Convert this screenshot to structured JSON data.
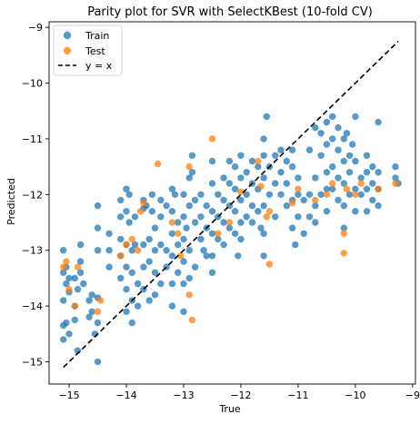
{
  "chart_data": {
    "type": "scatter",
    "title": "Parity plot for SVR with SelectKBest (10-fold CV)",
    "xlabel": "True",
    "ylabel": "Predicted",
    "xlim": [
      -15.35,
      -8.95
    ],
    "ylim": [
      -15.4,
      -8.9
    ],
    "xticks": [
      -15,
      -14,
      -13,
      -12,
      -11,
      -10,
      -9
    ],
    "xtick_labels": [
      "−15",
      "−14",
      "−13",
      "−12",
      "−11",
      "−10",
      "−9"
    ],
    "yticks": [
      -15,
      -14,
      -13,
      -12,
      -11,
      -10,
      -9
    ],
    "ytick_labels": [
      "−15",
      "−14",
      "−13",
      "−12",
      "−11",
      "−10",
      "−9"
    ],
    "grid": false,
    "legend_position": "top-left",
    "legend": [
      "Train",
      "Test",
      "y = x"
    ],
    "colors": {
      "train": "#1f77b4",
      "test": "#ff7f0e",
      "identity": "#000000"
    },
    "series": [
      {
        "name": "Train",
        "points": [
          [
            -15.1,
            -13.0
          ],
          [
            -15.1,
            -13.4
          ],
          [
            -15.1,
            -13.9
          ],
          [
            -15.1,
            -14.35
          ],
          [
            -15.1,
            -14.6
          ],
          [
            -15.05,
            -13.3
          ],
          [
            -15.05,
            -13.6
          ],
          [
            -15.05,
            -14.3
          ],
          [
            -15.0,
            -13.5
          ],
          [
            -15.0,
            -13.75
          ],
          [
            -15.0,
            -14.5
          ],
          [
            -14.9,
            -13.5
          ],
          [
            -14.9,
            -14.0
          ],
          [
            -14.9,
            -14.25
          ],
          [
            -14.85,
            -13.7
          ],
          [
            -14.85,
            -14.8
          ],
          [
            -14.8,
            -12.9
          ],
          [
            -14.8,
            -13.2
          ],
          [
            -14.8,
            -13.4
          ],
          [
            -14.75,
            -13.6
          ],
          [
            -14.65,
            -13.9
          ],
          [
            -14.65,
            -14.2
          ],
          [
            -14.6,
            -13.8
          ],
          [
            -14.6,
            -14.1
          ],
          [
            -14.55,
            -14.5
          ],
          [
            -14.5,
            -12.2
          ],
          [
            -14.5,
            -12.6
          ],
          [
            -14.5,
            -13.0
          ],
          [
            -14.5,
            -13.85
          ],
          [
            -14.5,
            -14.3
          ],
          [
            -14.5,
            -15.0
          ],
          [
            -14.3,
            -12.7
          ],
          [
            -14.3,
            -13.3
          ],
          [
            -14.3,
            -13.0
          ],
          [
            -14.1,
            -12.1
          ],
          [
            -14.1,
            -12.4
          ],
          [
            -14.1,
            -12.8
          ],
          [
            -14.1,
            -13.1
          ],
          [
            -14.1,
            -13.5
          ],
          [
            -14.0,
            -11.9
          ],
          [
            -14.0,
            -12.3
          ],
          [
            -14.0,
            -12.9
          ],
          [
            -14.0,
            -13.3
          ],
          [
            -14.0,
            -13.7
          ],
          [
            -14.0,
            -14.1
          ],
          [
            -13.95,
            -12.0
          ],
          [
            -13.95,
            -12.5
          ],
          [
            -13.9,
            -13.0
          ],
          [
            -13.9,
            -13.4
          ],
          [
            -13.9,
            -13.9
          ],
          [
            -13.9,
            -14.3
          ],
          [
            -13.85,
            -12.4
          ],
          [
            -13.85,
            -12.9
          ],
          [
            -13.8,
            -13.6
          ],
          [
            -13.8,
            -14.0
          ],
          [
            -13.7,
            -12.1
          ],
          [
            -13.7,
            -12.25
          ],
          [
            -13.7,
            -12.9
          ],
          [
            -13.7,
            -13.3
          ],
          [
            -13.7,
            -13.7
          ],
          [
            -13.65,
            -12.2
          ],
          [
            -13.6,
            -12.8
          ],
          [
            -13.6,
            -13.2
          ],
          [
            -13.6,
            -13.9
          ],
          [
            -13.55,
            -12.0
          ],
          [
            -13.55,
            -12.3
          ],
          [
            -13.5,
            -12.6
          ],
          [
            -13.5,
            -13.0
          ],
          [
            -13.5,
            -13.4
          ],
          [
            -13.5,
            -13.8
          ],
          [
            -13.4,
            -12.1
          ],
          [
            -13.4,
            -12.4
          ],
          [
            -13.4,
            -12.9
          ],
          [
            -13.4,
            -13.6
          ],
          [
            -13.3,
            -12.2
          ],
          [
            -13.3,
            -13.0
          ],
          [
            -13.3,
            -13.3
          ],
          [
            -13.2,
            -11.9
          ],
          [
            -13.2,
            -12.3
          ],
          [
            -13.2,
            -12.7
          ],
          [
            -13.2,
            -13.1
          ],
          [
            -13.2,
            -13.6
          ],
          [
            -13.2,
            -14.0
          ],
          [
            -13.15,
            -12.0
          ],
          [
            -13.1,
            -12.5
          ],
          [
            -13.1,
            -12.9
          ],
          [
            -13.1,
            -13.4
          ],
          [
            -13.0,
            -12.0
          ],
          [
            -13.0,
            -12.4
          ],
          [
            -13.0,
            -12.8
          ],
          [
            -13.0,
            -13.2
          ],
          [
            -13.0,
            -13.6
          ],
          [
            -13.0,
            -14.1
          ],
          [
            -12.95,
            -12.6
          ],
          [
            -12.9,
            -11.7
          ],
          [
            -12.9,
            -12.2
          ],
          [
            -12.9,
            -13.0
          ],
          [
            -12.9,
            -13.5
          ],
          [
            -12.85,
            -11.3
          ],
          [
            -12.85,
            -11.6
          ],
          [
            -12.8,
            -12.1
          ],
          [
            -12.8,
            -12.5
          ],
          [
            -12.8,
            -13.3
          ],
          [
            -12.7,
            -12.0
          ],
          [
            -12.7,
            -12.4
          ],
          [
            -12.7,
            -12.8
          ],
          [
            -12.65,
            -13.0
          ],
          [
            -12.6,
            -12.2
          ],
          [
            -12.6,
            -12.6
          ],
          [
            -12.6,
            -13.1
          ],
          [
            -12.5,
            -11.4
          ],
          [
            -12.5,
            -11.8
          ],
          [
            -12.5,
            -12.3
          ],
          [
            -12.5,
            -12.7
          ],
          [
            -12.5,
            -13.1
          ],
          [
            -12.5,
            -13.4
          ],
          [
            -12.4,
            -12.0
          ],
          [
            -12.4,
            -12.4
          ],
          [
            -12.4,
            -12.8
          ],
          [
            -12.3,
            -11.7
          ],
          [
            -12.3,
            -12.1
          ],
          [
            -12.3,
            -12.5
          ],
          [
            -12.3,
            -12.9
          ],
          [
            -12.2,
            -11.4
          ],
          [
            -12.2,
            -11.8
          ],
          [
            -12.2,
            -12.2
          ],
          [
            -12.2,
            -12.6
          ],
          [
            -12.1,
            -11.5
          ],
          [
            -12.1,
            -11.9
          ],
          [
            -12.1,
            -12.3
          ],
          [
            -12.1,
            -12.7
          ],
          [
            -12.05,
            -13.1
          ],
          [
            -12.0,
            -11.3
          ],
          [
            -12.0,
            -11.7
          ],
          [
            -12.0,
            -12.1
          ],
          [
            -12.0,
            -12.5
          ],
          [
            -12.0,
            -12.8
          ],
          [
            -11.9,
            -11.6
          ],
          [
            -11.9,
            -12.0
          ],
          [
            -11.9,
            -12.4
          ],
          [
            -11.8,
            -11.4
          ],
          [
            -11.8,
            -11.8
          ],
          [
            -11.8,
            -12.2
          ],
          [
            -11.8,
            -12.5
          ],
          [
            -11.7,
            -11.5
          ],
          [
            -11.7,
            -11.9
          ],
          [
            -11.7,
            -12.3
          ],
          [
            -11.65,
            -12.6
          ],
          [
            -11.6,
            -11.0
          ],
          [
            -11.6,
            -11.3
          ],
          [
            -11.6,
            -11.7
          ],
          [
            -11.6,
            -12.2
          ],
          [
            -11.6,
            -12.7
          ],
          [
            -11.6,
            -13.1
          ],
          [
            -11.55,
            -10.6
          ],
          [
            -11.5,
            -11.5
          ],
          [
            -11.5,
            -12.0
          ],
          [
            -11.4,
            -11.3
          ],
          [
            -11.4,
            -11.8
          ],
          [
            -11.4,
            -12.4
          ],
          [
            -11.3,
            -11.2
          ],
          [
            -11.3,
            -11.6
          ],
          [
            -11.3,
            -12.0
          ],
          [
            -11.2,
            -11.4
          ],
          [
            -11.2,
            -11.8
          ],
          [
            -11.2,
            -12.2
          ],
          [
            -11.1,
            -11.2
          ],
          [
            -11.1,
            -11.5
          ],
          [
            -11.1,
            -12.1
          ],
          [
            -11.1,
            -12.6
          ],
          [
            -11.05,
            -12.9
          ],
          [
            -11.0,
            -11.7
          ],
          [
            -11.0,
            -12.0
          ],
          [
            -11.0,
            -12.4
          ],
          [
            -10.9,
            -12.1
          ],
          [
            -10.9,
            -12.7
          ],
          [
            -10.8,
            -11.2
          ],
          [
            -10.8,
            -12.0
          ],
          [
            -10.8,
            -12.4
          ],
          [
            -10.7,
            -10.8
          ],
          [
            -10.7,
            -11.7
          ],
          [
            -10.7,
            -12.2
          ],
          [
            -10.7,
            -12.5
          ],
          [
            -10.6,
            -10.9
          ],
          [
            -10.6,
            -11.3
          ],
          [
            -10.6,
            -12.0
          ],
          [
            -10.5,
            -10.7
          ],
          [
            -10.5,
            -11.1
          ],
          [
            -10.5,
            -11.6
          ],
          [
            -10.5,
            -11.9
          ],
          [
            -10.5,
            -12.3
          ],
          [
            -10.4,
            -10.6
          ],
          [
            -10.4,
            -11.0
          ],
          [
            -10.4,
            -11.5
          ],
          [
            -10.4,
            -11.9
          ],
          [
            -10.3,
            -10.8
          ],
          [
            -10.3,
            -11.2
          ],
          [
            -10.3,
            -11.7
          ],
          [
            -10.3,
            -12.1
          ],
          [
            -10.2,
            -11.0
          ],
          [
            -10.2,
            -11.4
          ],
          [
            -10.2,
            -11.8
          ],
          [
            -10.2,
            -12.2
          ],
          [
            -10.2,
            -12.6
          ],
          [
            -10.15,
            -10.9
          ],
          [
            -10.1,
            -11.3
          ],
          [
            -10.1,
            -11.6
          ],
          [
            -10.1,
            -12.0
          ],
          [
            -10.05,
            -11.1
          ],
          [
            -10.0,
            -10.6
          ],
          [
            -10.0,
            -11.4
          ],
          [
            -10.0,
            -11.9
          ],
          [
            -10.0,
            -12.3
          ],
          [
            -9.9,
            -11.7
          ],
          [
            -9.9,
            -12.0
          ],
          [
            -9.8,
            -11.3
          ],
          [
            -9.8,
            -11.6
          ],
          [
            -9.8,
            -11.9
          ],
          [
            -9.8,
            -12.3
          ],
          [
            -9.7,
            -11.5
          ],
          [
            -9.7,
            -11.8
          ],
          [
            -9.7,
            -12.1
          ],
          [
            -9.6,
            -10.7
          ],
          [
            -9.6,
            -11.6
          ],
          [
            -9.6,
            -11.9
          ],
          [
            -9.6,
            -12.2
          ],
          [
            -9.3,
            -11.5
          ],
          [
            -9.3,
            -11.7
          ],
          [
            -9.25,
            -11.8
          ]
        ]
      },
      {
        "name": "Test",
        "points": [
          [
            -15.1,
            -13.3
          ],
          [
            -15.05,
            -13.2
          ],
          [
            -15.0,
            -13.7
          ],
          [
            -14.85,
            -13.3
          ],
          [
            -14.9,
            -14.0
          ],
          [
            -14.5,
            -14.1
          ],
          [
            -14.45,
            -13.9
          ],
          [
            -14.1,
            -13.1
          ],
          [
            -14.0,
            -12.9
          ],
          [
            -13.9,
            -12.8
          ],
          [
            -13.8,
            -13.0
          ],
          [
            -13.75,
            -12.3
          ],
          [
            -13.7,
            -12.15
          ],
          [
            -13.45,
            -11.45
          ],
          [
            -13.2,
            -12.5
          ],
          [
            -13.1,
            -12.7
          ],
          [
            -13.05,
            -13.1
          ],
          [
            -12.9,
            -11.5
          ],
          [
            -12.9,
            -13.8
          ],
          [
            -12.85,
            -14.25
          ],
          [
            -12.5,
            -11.0
          ],
          [
            -12.4,
            -12.7
          ],
          [
            -12.2,
            -12.5
          ],
          [
            -12.0,
            -11.95
          ],
          [
            -11.7,
            -11.4
          ],
          [
            -11.65,
            -11.85
          ],
          [
            -11.55,
            -12.4
          ],
          [
            -11.5,
            -12.3
          ],
          [
            -11.5,
            -13.25
          ],
          [
            -11.1,
            -12.15
          ],
          [
            -11.0,
            -11.9
          ],
          [
            -10.7,
            -12.1
          ],
          [
            -10.5,
            -12.0
          ],
          [
            -10.4,
            -11.8
          ],
          [
            -10.2,
            -12.7
          ],
          [
            -10.2,
            -13.05
          ],
          [
            -10.15,
            -11.9
          ],
          [
            -10.0,
            -12.0
          ],
          [
            -9.9,
            -11.8
          ],
          [
            -9.6,
            -11.9
          ],
          [
            -9.3,
            -11.8
          ]
        ]
      }
    ],
    "identity_line": {
      "x": [
        -15.1,
        -9.25
      ],
      "y": [
        -15.1,
        -9.25
      ]
    }
  }
}
